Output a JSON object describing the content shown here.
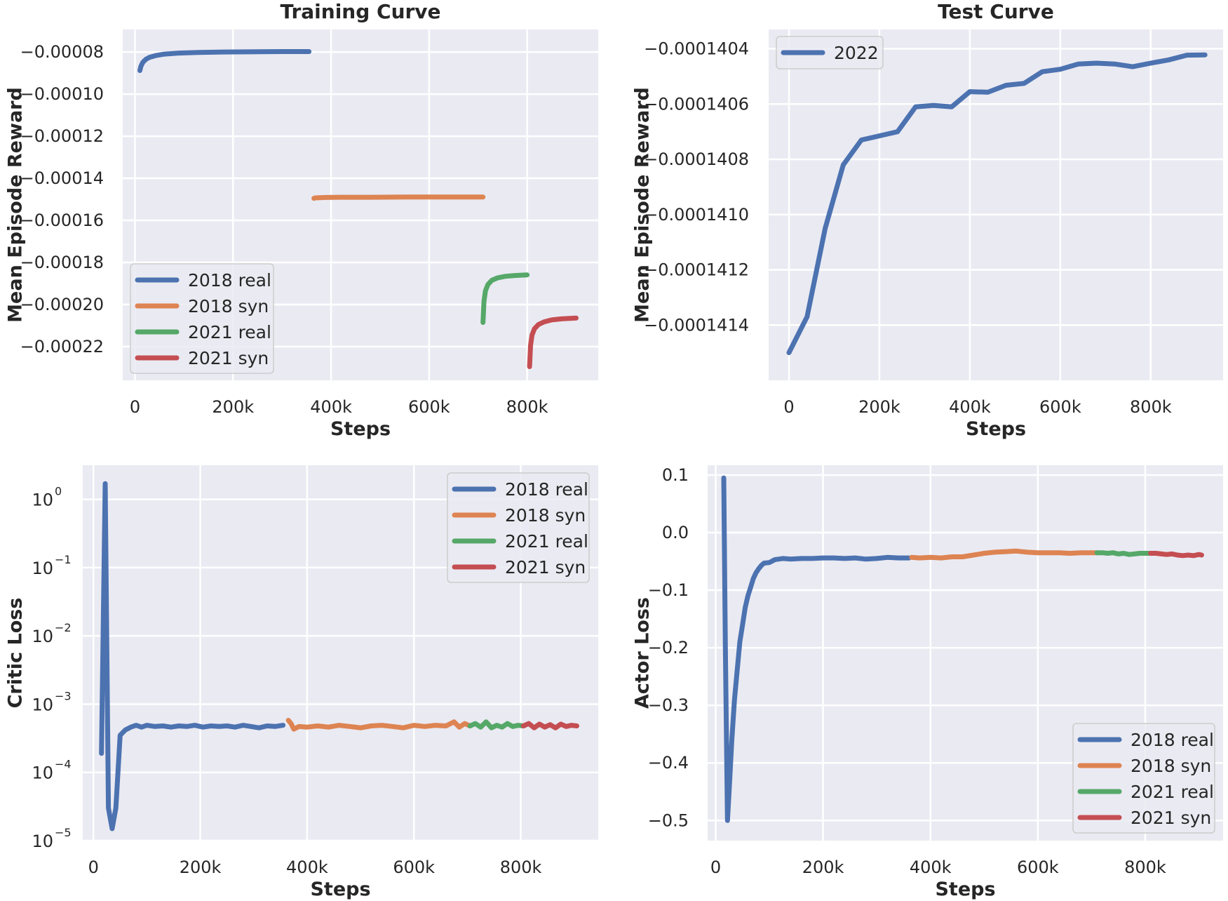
{
  "chart_data": [
    {
      "type": "line",
      "title": "Training Curve",
      "xlabel": "Steps",
      "ylabel": "Mean Episode Reward",
      "xlim": [
        -25000,
        945000
      ],
      "ylim": [
        -0.000236,
        -6.93e-05
      ],
      "xticks": [
        0,
        200000,
        400000,
        600000,
        800000
      ],
      "xtick_labels": [
        "0",
        "200k",
        "400k",
        "600k",
        "800k"
      ],
      "yticks": [
        -8e-05,
        -0.0001,
        -0.00012,
        -0.00014,
        -0.00016,
        -0.00018,
        -0.0002,
        -0.00022
      ],
      "ytick_labels": [
        "−0.00008",
        "−0.00010",
        "−0.00012",
        "−0.00014",
        "−0.00016",
        "−0.00018",
        "−0.00020",
        "−0.00022"
      ],
      "grid": true,
      "legend_position": "lower-left",
      "series": [
        {
          "name": "2018 real",
          "color": "#4c72b0",
          "x": [
            10000,
            12000,
            16000,
            22000,
            30000,
            42000,
            60000,
            90000,
            130000,
            180000,
            250000,
            300000,
            355000
          ],
          "y": [
            -8.88e-05,
            -8.68e-05,
            -8.49e-05,
            -8.35e-05,
            -8.25e-05,
            -8.17e-05,
            -8.1e-05,
            -8.05e-05,
            -8.02e-05,
            -8e-05,
            -7.99e-05,
            -7.98e-05,
            -7.98e-05
          ]
        },
        {
          "name": "2018 syn",
          "color": "#dd8452",
          "x": [
            365000,
            368000,
            375000,
            390000,
            420000,
            480000,
            560000,
            640000,
            710000
          ],
          "y": [
            -0.0001495,
            -0.0001493,
            -0.0001492,
            -0.0001491,
            -0.000149,
            -0.000149,
            -0.0001489,
            -0.0001489,
            -0.0001489
          ]
        },
        {
          "name": "2021 real",
          "color": "#55a868",
          "x": [
            710000,
            712000,
            715000,
            720000,
            728000,
            740000,
            755000,
            775000,
            800000
          ],
          "y": [
            -0.0002085,
            -0.0001985,
            -0.0001935,
            -0.0001905,
            -0.0001885,
            -0.0001873,
            -0.0001866,
            -0.0001862,
            -0.0001859
          ]
        },
        {
          "name": "2021 syn",
          "color": "#c44e52",
          "x": [
            805000,
            807000,
            810000,
            815000,
            823000,
            835000,
            850000,
            870000,
            900000
          ],
          "y": [
            -0.0002295,
            -0.0002195,
            -0.0002145,
            -0.0002115,
            -0.0002095,
            -0.0002082,
            -0.0002073,
            -0.0002068,
            -0.0002064
          ]
        }
      ]
    },
    {
      "type": "line",
      "title": "Test Curve",
      "xlabel": "Steps",
      "ylabel": "Mean Episode Reward",
      "xlim": [
        -45000,
        960000
      ],
      "ylim": [
        -0.0001416,
        -0.00014033
      ],
      "xticks": [
        0,
        200000,
        400000,
        600000,
        800000
      ],
      "xtick_labels": [
        "0",
        "200k",
        "400k",
        "600k",
        "800k"
      ],
      "yticks": [
        -0.0001404,
        -0.0001406,
        -0.0001408,
        -0.000141,
        -0.0001412,
        -0.0001414
      ],
      "ytick_labels": [
        "−0.0001404",
        "−0.0001406",
        "−0.0001408",
        "−0.0001410",
        "−0.0001412",
        "−0.0001414"
      ],
      "grid": true,
      "legend_position": "top-left",
      "series": [
        {
          "name": "2022",
          "color": "#4c72b0",
          "x": [
            0,
            40000,
            80000,
            120000,
            160000,
            200000,
            240000,
            280000,
            320000,
            360000,
            400000,
            440000,
            480000,
            520000,
            560000,
            600000,
            640000,
            680000,
            720000,
            760000,
            800000,
            840000,
            880000,
            920000
          ],
          "y": [
            -0.0001415,
            -0.00014137,
            -0.00014105,
            -0.00014082,
            -0.00014073,
            -0.000140715,
            -0.0001407,
            -0.00014061,
            -0.000140605,
            -0.00014061,
            -0.000140555,
            -0.000140557,
            -0.000140532,
            -0.000140525,
            -0.000140483,
            -0.000140474,
            -0.000140455,
            -0.000140452,
            -0.000140455,
            -0.000140465,
            -0.000140452,
            -0.00014044,
            -0.000140423,
            -0.000140422
          ]
        }
      ]
    },
    {
      "type": "line",
      "xlabel": "Steps",
      "ylabel": "Critic Loss",
      "yscale": "log",
      "xlim": [
        -20000,
        945000
      ],
      "ylim": [
        1e-05,
        3.16
      ],
      "xticks": [
        0,
        200000,
        400000,
        600000,
        800000
      ],
      "xtick_labels": [
        "0",
        "200k",
        "400k",
        "600k",
        "800k"
      ],
      "yticks": [
        1e-05,
        0.0001,
        0.001,
        0.01,
        0.1,
        1
      ],
      "ytick_labels": [
        {
          "base": "10",
          "exp": "−5"
        },
        {
          "base": "10",
          "exp": "−4"
        },
        {
          "base": "10",
          "exp": "−3"
        },
        {
          "base": "10",
          "exp": "−2"
        },
        {
          "base": "10",
          "exp": "−1"
        },
        {
          "base": "10",
          "exp": "0"
        }
      ],
      "grid": true,
      "legend_position": "top-right",
      "series": [
        {
          "name": "2018 real",
          "color": "#4c72b0",
          "x": [
            15000,
            22000,
            28000,
            35000,
            42000,
            50000,
            60000,
            70000,
            80000,
            90000,
            100000,
            115000,
            130000,
            145000,
            160000,
            175000,
            190000,
            205000,
            220000,
            235000,
            250000,
            265000,
            280000,
            295000,
            310000,
            325000,
            340000,
            355000
          ],
          "y": [
            0.00019,
            1.7,
            3e-05,
            1.5e-05,
            3e-05,
            0.00035,
            0.00042,
            0.00046,
            0.00049,
            0.00046,
            0.00049,
            0.00047,
            0.00048,
            0.00046,
            0.00048,
            0.00047,
            0.00049,
            0.00046,
            0.00048,
            0.00047,
            0.00048,
            0.00046,
            0.00049,
            0.00047,
            0.00045,
            0.00048,
            0.00047,
            0.00049
          ]
        },
        {
          "name": "2018 syn",
          "color": "#dd8452",
          "x": [
            365000,
            370000,
            375000,
            385000,
            400000,
            420000,
            440000,
            460000,
            480000,
            500000,
            520000,
            540000,
            560000,
            580000,
            600000,
            620000,
            640000,
            660000,
            675000,
            685000,
            695000,
            705000
          ],
          "y": [
            0.00058,
            0.00052,
            0.00043,
            0.00047,
            0.00046,
            0.00048,
            0.00046,
            0.00049,
            0.00047,
            0.00045,
            0.00048,
            0.00049,
            0.00047,
            0.00045,
            0.00049,
            0.00047,
            0.00049,
            0.00048,
            0.00055,
            0.00046,
            0.00052,
            0.00048
          ]
        },
        {
          "name": "2021 real",
          "color": "#55a868",
          "x": [
            705000,
            715000,
            725000,
            735000,
            745000,
            755000,
            765000,
            775000,
            785000,
            795000,
            805000
          ],
          "y": [
            0.00048,
            0.00052,
            0.00046,
            0.00055,
            0.00045,
            0.00049,
            0.00046,
            0.00052,
            0.00047,
            0.00049,
            0.00048
          ]
        },
        {
          "name": "2021 syn",
          "color": "#c44e52",
          "x": [
            805000,
            815000,
            825000,
            835000,
            845000,
            855000,
            865000,
            875000,
            885000,
            895000,
            905000
          ],
          "y": [
            0.00048,
            0.00052,
            0.00045,
            0.00051,
            0.00046,
            0.0005,
            0.00045,
            0.00051,
            0.00047,
            0.00049,
            0.00048
          ]
        }
      ]
    },
    {
      "type": "line",
      "xlabel": "Steps",
      "ylabel": "Actor Loss",
      "xlim": [
        -15000,
        945000
      ],
      "ylim": [
        -0.535,
        0.117
      ],
      "xticks": [
        0,
        200000,
        400000,
        600000,
        800000
      ],
      "xtick_labels": [
        "0",
        "200k",
        "400k",
        "600k",
        "800k"
      ],
      "yticks": [
        0.1,
        0.0,
        -0.1,
        -0.2,
        -0.3,
        -0.4,
        -0.5
      ],
      "ytick_labels": [
        "0.1",
        "0.0",
        "−0.1",
        "−0.2",
        "−0.3",
        "−0.4",
        "−0.5"
      ],
      "grid": true,
      "legend_position": "lower-right",
      "series": [
        {
          "name": "2018 real",
          "color": "#4c72b0",
          "x": [
            15000,
            18000,
            22000,
            25000,
            30000,
            35000,
            40000,
            45000,
            50000,
            55000,
            60000,
            65000,
            70000,
            75000,
            80000,
            85000,
            90000,
            100000,
            110000,
            125000,
            140000,
            160000,
            180000,
            200000,
            220000,
            240000,
            260000,
            280000,
            300000,
            320000,
            340000,
            360000
          ],
          "y": [
            0.095,
            -0.2,
            -0.5,
            -0.45,
            -0.36,
            -0.29,
            -0.24,
            -0.19,
            -0.16,
            -0.13,
            -0.11,
            -0.095,
            -0.08,
            -0.07,
            -0.063,
            -0.057,
            -0.053,
            -0.052,
            -0.047,
            -0.045,
            -0.046,
            -0.045,
            -0.045,
            -0.044,
            -0.044,
            -0.045,
            -0.044,
            -0.046,
            -0.045,
            -0.043,
            -0.044,
            -0.044
          ]
        },
        {
          "name": "2018 syn",
          "color": "#dd8452",
          "x": [
            365000,
            380000,
            400000,
            420000,
            440000,
            460000,
            480000,
            500000,
            520000,
            540000,
            560000,
            580000,
            600000,
            620000,
            640000,
            660000,
            680000,
            700000,
            710000
          ],
          "y": [
            -0.043,
            -0.044,
            -0.043,
            -0.044,
            -0.042,
            -0.042,
            -0.039,
            -0.036,
            -0.034,
            -0.033,
            -0.032,
            -0.034,
            -0.035,
            -0.035,
            -0.035,
            -0.036,
            -0.035,
            -0.035,
            -0.035
          ]
        },
        {
          "name": "2021 real",
          "color": "#55a868",
          "x": [
            710000,
            720000,
            730000,
            740000,
            750000,
            760000,
            770000,
            780000,
            790000,
            800000,
            810000
          ],
          "y": [
            -0.035,
            -0.035,
            -0.036,
            -0.035,
            -0.037,
            -0.036,
            -0.038,
            -0.037,
            -0.036,
            -0.036,
            -0.036
          ]
        },
        {
          "name": "2021 syn",
          "color": "#c44e52",
          "x": [
            810000,
            820000,
            830000,
            840000,
            850000,
            860000,
            870000,
            880000,
            890000,
            900000,
            905000
          ],
          "y": [
            -0.036,
            -0.036,
            -0.037,
            -0.038,
            -0.037,
            -0.039,
            -0.04,
            -0.039,
            -0.04,
            -0.038,
            -0.039
          ]
        }
      ]
    }
  ]
}
